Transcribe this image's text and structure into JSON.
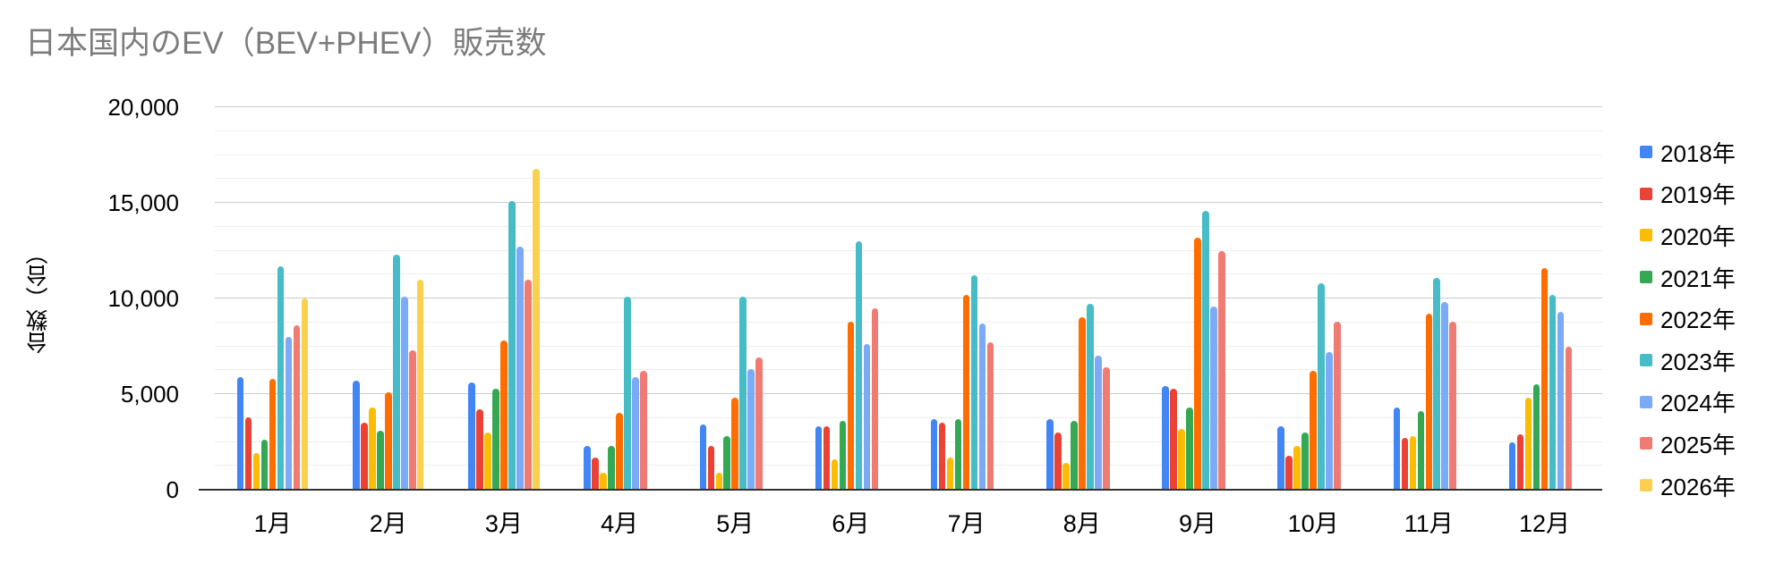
{
  "title": "日本国内のEV（BEV+PHEV）販売数",
  "title_color": "#7c7c7c",
  "chart_data": {
    "type": "bar",
    "title": "日本国内のEV（BEV+PHEV）販売数",
    "xlabel": "",
    "ylabel": "台数（台）",
    "ylim": [
      0,
      20000
    ],
    "y_major_ticks": [
      {
        "value": 0,
        "label": "0"
      },
      {
        "value": 5000,
        "label": "5,000"
      },
      {
        "value": 10000,
        "label": "10,000"
      },
      {
        "value": 15000,
        "label": "15,000"
      },
      {
        "value": 20000,
        "label": "20,000"
      }
    ],
    "y_minor_interval": 1250,
    "grid": "horizontal",
    "legend_position": "right",
    "categories": [
      "1月",
      "2月",
      "3月",
      "4月",
      "5月",
      "6月",
      "7月",
      "8月",
      "9月",
      "10月",
      "11月",
      "12月"
    ],
    "series": [
      {
        "name": "2018年",
        "color": "#4285F4",
        "values": [
          5900,
          5700,
          5600,
          2300,
          3400,
          3300,
          3700,
          3700,
          5400,
          3300,
          4300,
          2500
        ]
      },
      {
        "name": "2019年",
        "color": "#EA4335",
        "values": [
          3800,
          3500,
          4200,
          1700,
          2300,
          3300,
          3500,
          3000,
          5300,
          1800,
          2700,
          2900
        ]
      },
      {
        "name": "2020年",
        "color": "#FBBC04",
        "values": [
          1900,
          4300,
          3000,
          900,
          900,
          1600,
          1700,
          1400,
          3200,
          2300,
          2800,
          4800
        ]
      },
      {
        "name": "2021年",
        "color": "#34A853",
        "values": [
          2600,
          3100,
          5300,
          2300,
          2800,
          3600,
          3700,
          3600,
          4300,
          3000,
          4100,
          5500
        ]
      },
      {
        "name": "2022年",
        "color": "#FF6D01",
        "values": [
          5800,
          5100,
          7800,
          4000,
          4800,
          8800,
          10200,
          9000,
          13200,
          6200,
          9200,
          11600
        ]
      },
      {
        "name": "2023年",
        "color": "#46BDC6",
        "values": [
          11700,
          12300,
          15100,
          10100,
          10100,
          13000,
          11200,
          9700,
          14600,
          10800,
          11100,
          10200
        ]
      },
      {
        "name": "2024年",
        "color": "#7BAAF7",
        "values": [
          8000,
          10100,
          12700,
          5900,
          6300,
          7600,
          8700,
          7000,
          9600,
          7200,
          9800,
          9300
        ]
      },
      {
        "name": "2025年",
        "color": "#F07B72",
        "values": [
          8600,
          7300,
          11000,
          6200,
          6900,
          9500,
          7700,
          6400,
          12500,
          8800,
          8800,
          7500
        ]
      },
      {
        "name": "2026年",
        "color": "#FCD04F",
        "values": [
          10000,
          11000,
          16800,
          null,
          null,
          null,
          null,
          null,
          null,
          null,
          null,
          null
        ]
      }
    ]
  }
}
